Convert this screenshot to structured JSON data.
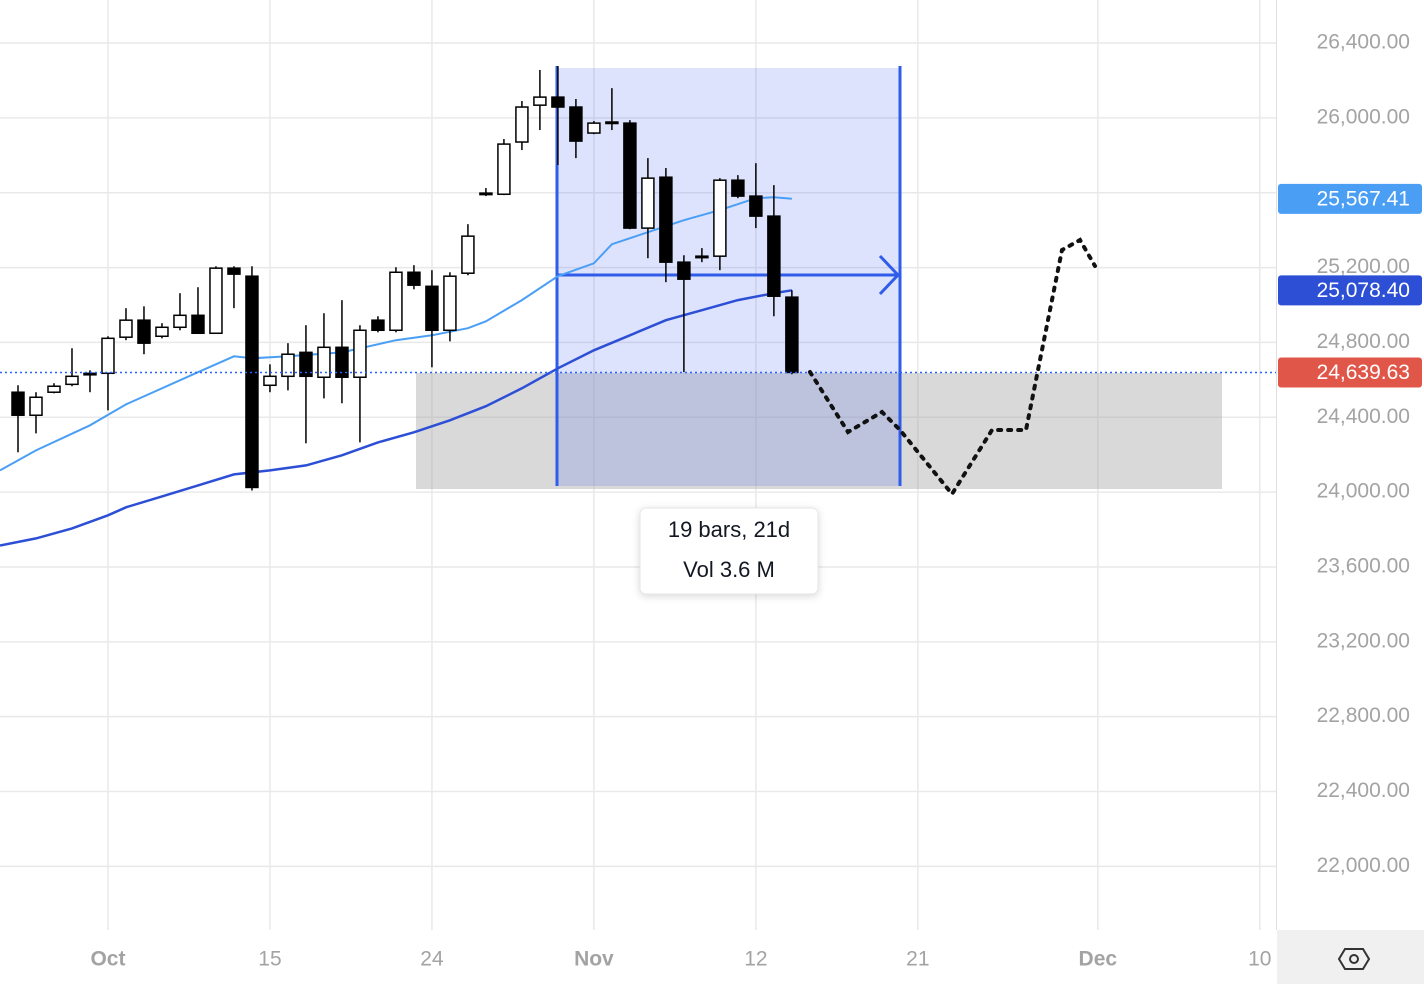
{
  "chart_data": {
    "type": "candlestick",
    "xlim": [
      0,
      70.9
    ],
    "ylim": [
      21660,
      26630
    ],
    "xticks": [
      {
        "value": 6,
        "label": "Oct"
      },
      15,
      24,
      {
        "value": 33,
        "label": "Nov"
      },
      {
        "value": 42,
        "label": "12"
      },
      {
        "value": 51,
        "label": "21"
      },
      {
        "value": 61,
        "label": "Dec"
      },
      {
        "value": 70,
        "label": "10"
      }
    ],
    "month_ticks": [
      0,
      3,
      6
    ],
    "yticks": [
      {
        "value": 22000,
        "label": "22,000.00"
      },
      {
        "value": 22400,
        "label": "22,400.00"
      },
      {
        "value": 22800,
        "label": "22,800.00"
      },
      {
        "value": 23200,
        "label": "23,200.00"
      },
      {
        "value": 23600,
        "label": "23,600.00"
      },
      {
        "value": 24000,
        "label": "24,000.00"
      },
      {
        "value": 24400,
        "label": "24,400.00"
      },
      {
        "value": 24800,
        "label": "24,800.00"
      },
      {
        "value": 25200,
        "label": "25,200.00"
      },
      {
        "value": 25600,
        "label": "25,600.00"
      },
      {
        "value": 26000,
        "label": "26,000.00"
      },
      {
        "value": 26400,
        "label": "26,400.00"
      }
    ],
    "grid": true,
    "up_color": "#ffffff",
    "down_color": "#000000",
    "x": [
      1,
      2,
      3,
      4,
      5,
      6,
      7,
      8,
      9,
      10,
      11,
      12,
      13,
      14,
      15,
      16,
      17,
      18,
      19,
      20,
      21,
      22,
      23,
      24,
      25,
      26,
      27,
      28,
      29,
      30,
      31,
      32,
      33,
      34,
      35,
      36,
      37,
      38,
      39,
      40,
      41,
      42,
      43,
      44
    ],
    "open": [
      24534,
      24411,
      24534,
      24576,
      24635,
      24635,
      24828,
      24919,
      24833,
      24881,
      24945,
      24849,
      25197,
      25154,
      24571,
      24619,
      24747,
      24614,
      24774,
      24614,
      24919,
      24865,
      25175,
      25100,
      24865,
      25170,
      25598,
      25592,
      25871,
      26068,
      26111,
      26058,
      25919,
      25978,
      25972,
      25411,
      25683,
      25229,
      25261,
      25261,
      25667,
      25582,
      25475,
      25042
    ],
    "high": [
      24571,
      24534,
      24582,
      24769,
      24651,
      24833,
      24983,
      24993,
      24903,
      25063,
      25095,
      25207,
      25207,
      25207,
      24683,
      24796,
      24892,
      24956,
      25026,
      24892,
      24940,
      25202,
      25213,
      25186,
      25175,
      25432,
      25625,
      25887,
      26090,
      26256,
      26277,
      26101,
      25983,
      26159,
      25988,
      25785,
      25732,
      25266,
      25304,
      25678,
      25694,
      25758,
      25641,
      25079
    ],
    "low": [
      24213,
      24314,
      24528,
      24566,
      24534,
      24437,
      24812,
      24737,
      24822,
      24865,
      24849,
      24849,
      24983,
      24009,
      24534,
      24544,
      24261,
      24501,
      24475,
      24266,
      24854,
      24854,
      25084,
      24667,
      24806,
      25159,
      25582,
      25587,
      25828,
      25935,
      25748,
      25785,
      25913,
      25935,
      25405,
      25250,
      25122,
      24641,
      25229,
      25186,
      25571,
      25411,
      24940,
      24630
    ],
    "close": [
      24411,
      24507,
      24566,
      24619,
      24635,
      24822,
      24919,
      24796,
      24881,
      24945,
      24849,
      25197,
      25165,
      24025,
      24619,
      24737,
      24619,
      24774,
      24614,
      24865,
      24865,
      25175,
      25106,
      24865,
      25154,
      25368,
      25598,
      25860,
      26058,
      26111,
      26058,
      25876,
      25972,
      25978,
      25411,
      25678,
      25229,
      25138,
      25261,
      25667,
      25582,
      25475,
      25047,
      24639.63
    ],
    "last_price": 24639.63,
    "last_price_label": "24,639.63",
    "last_price_color": "#e0574a",
    "lines": [
      {
        "color": "#4a9ff5",
        "width": 2,
        "x": [
          0,
          2,
          5,
          7,
          11,
          13,
          14,
          16,
          19,
          22,
          24,
          26,
          27,
          29,
          31,
          33,
          34,
          36,
          38,
          40,
          42,
          43,
          44
        ],
        "values": [
          24116,
          24223,
          24357,
          24469,
          24641,
          24726,
          24715,
          24726,
          24747,
          24812,
          24838,
          24876,
          24913,
          25026,
          25154,
          25223,
          25325,
          25389,
          25453,
          25507,
          25571,
          25576,
          25567.41
        ],
        "last_label": "25,567.41"
      },
      {
        "color": "#2c4fd6",
        "width": 2.5,
        "x": [
          0,
          2,
          4,
          6,
          7,
          9,
          11,
          13,
          15,
          17,
          19,
          21,
          23,
          25,
          27,
          29,
          31,
          33,
          35,
          37,
          39,
          41,
          43,
          44
        ],
        "values": [
          23715,
          23753,
          23806,
          23876,
          23919,
          23977,
          24036,
          24095,
          24116,
          24143,
          24197,
          24266,
          24320,
          24384,
          24459,
          24555,
          24662,
          24758,
          24838,
          24919,
          24972,
          25026,
          25063,
          25078.4
        ],
        "last_label": "25,078.40"
      }
    ],
    "tooltip": {
      "line1": "19 bars, 21d",
      "line2": "Vol 3.6 M"
    }
  }
}
